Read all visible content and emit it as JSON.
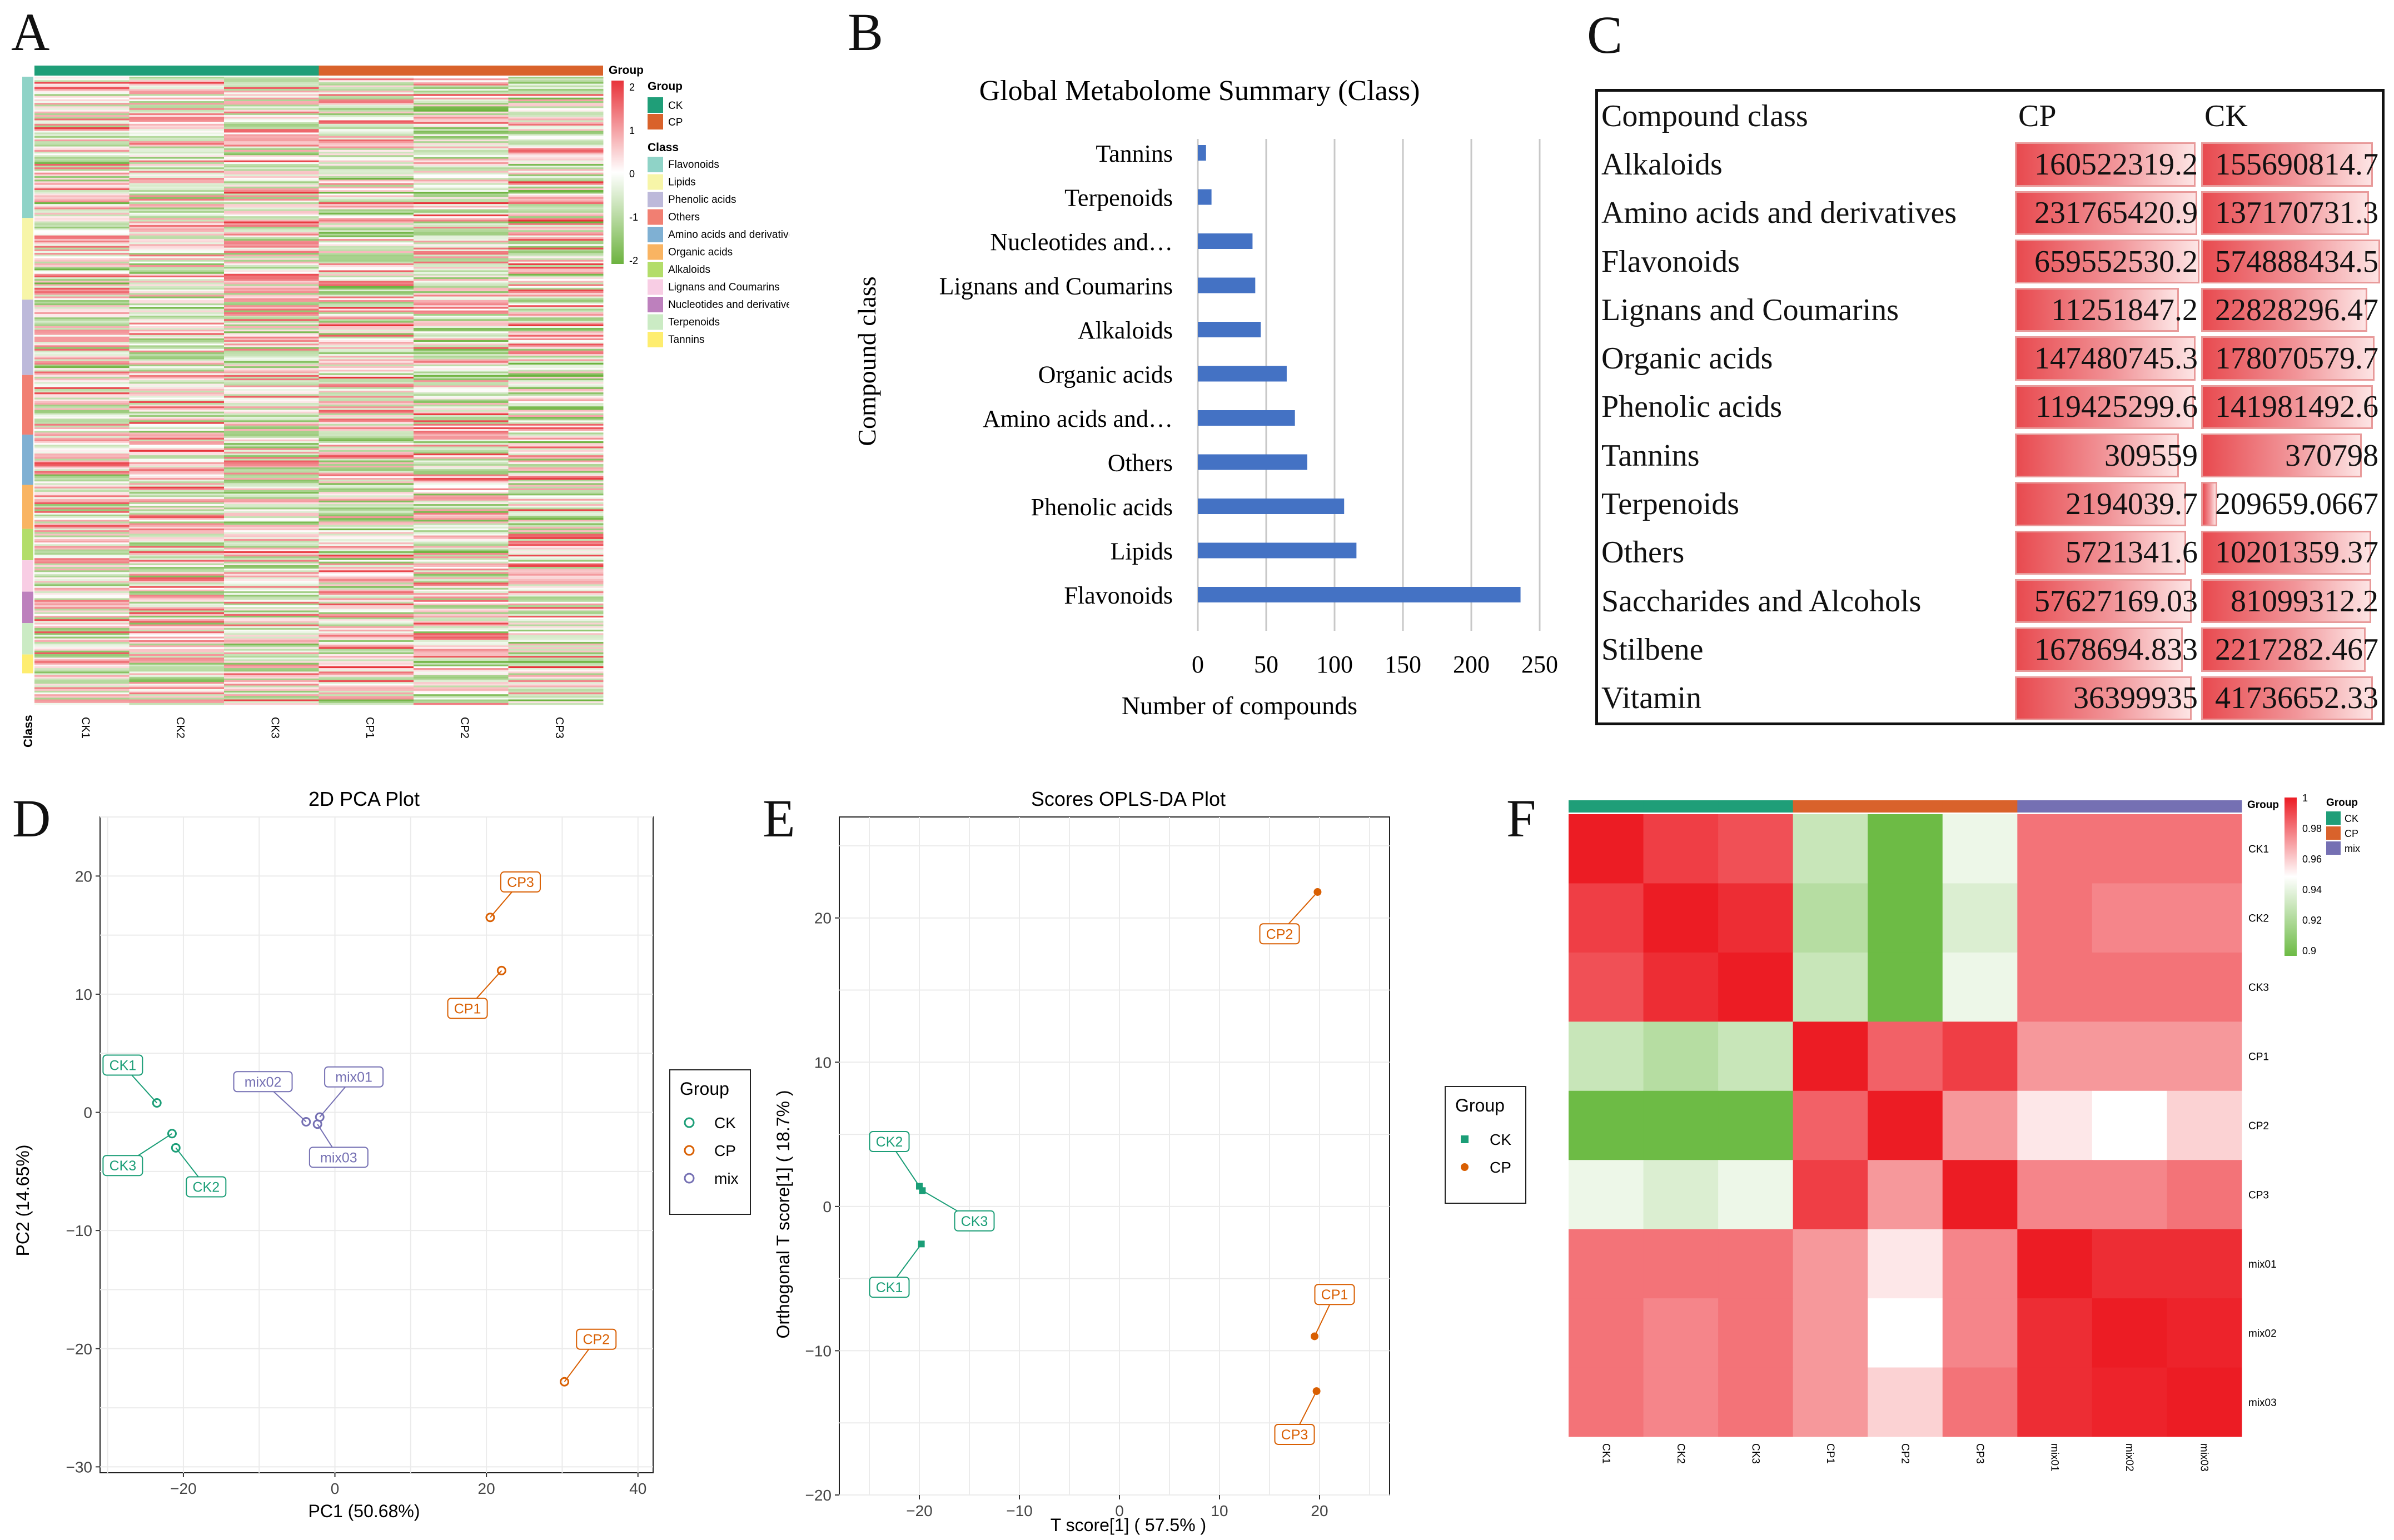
{
  "panels": {
    "A": "A",
    "B": "B",
    "C": "C",
    "D": "D",
    "E": "E",
    "F": "F"
  },
  "panelA": {
    "group_labels": [
      "CK1",
      "CK2",
      "CK3",
      "CP1",
      "CP2",
      "CP3"
    ],
    "class_axis_label": "Class",
    "legend": {
      "title": "Group",
      "groups": [
        {
          "name": "CK",
          "color": "#1f9e78"
        },
        {
          "name": "CP",
          "color": "#d9622b"
        }
      ],
      "class_title": "Class",
      "classes": [
        {
          "name": "Flavonoids",
          "color": "#8fd3c7"
        },
        {
          "name": "Lipids",
          "color": "#f7f5a8"
        },
        {
          "name": "Phenolic acids",
          "color": "#bdb9da"
        },
        {
          "name": "Others",
          "color": "#f17f72"
        },
        {
          "name": "Amino acids and derivatives",
          "color": "#7fb0d3"
        },
        {
          "name": "Organic acids",
          "color": "#f9b462"
        },
        {
          "name": "Alkaloids",
          "color": "#b3dd6a"
        },
        {
          "name": "Lignans and Coumarins",
          "color": "#f8cde4"
        },
        {
          "name": "Nucleotides and derivatives",
          "color": "#bd80bd"
        },
        {
          "name": "Terpenoids",
          "color": "#cbebc4"
        },
        {
          "name": "Tannins",
          "color": "#feed6f"
        }
      ],
      "scale_ticks": [
        "2",
        "1",
        "0",
        "-1",
        "-2"
      ],
      "scale_title": "Group"
    }
  },
  "chart_data": [
    {
      "panel": "B",
      "type": "bar",
      "orientation": "horizontal",
      "title": "Global Metabolome Summary (Class)",
      "xlabel": "Number of compounds",
      "ylabel": "Compound class",
      "categories": [
        "Tannins",
        "Terpenoids",
        "Nucleotides and…",
        "Lignans and Coumarins",
        "Alkaloids",
        "Organic acids",
        "Amino acids and…",
        "Others",
        "Phenolic acids",
        "Lipids",
        "Flavonoids"
      ],
      "values": [
        6,
        10,
        40,
        42,
        46,
        65,
        71,
        80,
        107,
        116,
        236
      ],
      "xlim": [
        0,
        250
      ],
      "xticks": [
        "0",
        "50",
        "100",
        "150",
        "200",
        "250"
      ],
      "color": "#4472c4",
      "grid": true
    },
    {
      "panel": "C",
      "type": "table",
      "headers": [
        "Compound class",
        "CP",
        "CK"
      ],
      "rows": [
        {
          "name": "Alkaloids",
          "cp": "160522319.2",
          "ck": "155690814.7",
          "cp_frac": 0.97,
          "ck_frac": 0.95
        },
        {
          "name": "Amino acids and derivatives",
          "cp": "231765420.9",
          "ck": "137170731.3",
          "cp_frac": 0.98,
          "ck_frac": 0.93
        },
        {
          "name": "Flavonoids",
          "cp": "659552530.2",
          "ck": "574888434.5",
          "cp_frac": 0.99,
          "ck_frac": 0.99
        },
        {
          "name": "Lignans and Coumarins",
          "cp": "11251847.2",
          "ck": "22828296.47",
          "cp_frac": 0.88,
          "ck_frac": 0.92
        },
        {
          "name": "Organic acids",
          "cp": "147480745.3",
          "ck": "178070579.7",
          "cp_frac": 0.97,
          "ck_frac": 0.96
        },
        {
          "name": "Phenolic acids",
          "cp": "119425299.6",
          "ck": "141981492.6",
          "cp_frac": 0.96,
          "ck_frac": 0.95
        },
        {
          "name": "Tannins",
          "cp": "309559",
          "ck": "370798",
          "cp_frac": 0.88,
          "ck_frac": 0.89
        },
        {
          "name": "Terpenoids",
          "cp": "2194039.7",
          "ck": "209659.0667",
          "cp_frac": 0.92,
          "ck_frac": 0.09
        },
        {
          "name": "Others",
          "cp": "5721341.6",
          "ck": "10201359.37",
          "cp_frac": 0.92,
          "ck_frac": 0.94
        },
        {
          "name": "Saccharides and Alcohols",
          "cp": "57627169.03",
          "ck": "81099312.2",
          "cp_frac": 0.95,
          "ck_frac": 0.94
        },
        {
          "name": "Stilbene",
          "cp": "1678694.833",
          "ck": "2217282.467",
          "cp_frac": 0.9,
          "ck_frac": 0.91
        },
        {
          "name": "Vitamin",
          "cp": "36399935",
          "ck": "41736652.33",
          "cp_frac": 0.95,
          "ck_frac": 0.95
        }
      ]
    },
    {
      "panel": "D",
      "type": "scatter",
      "title": "2D PCA Plot",
      "xlabel": "PC1 (50.68%)",
      "ylabel": "PC2 (14.65%)",
      "xlim": [
        -31,
        42
      ],
      "ylim": [
        -30.5,
        25
      ],
      "xticks": [
        -20,
        0,
        20,
        40
      ],
      "yticks": [
        -30,
        -20,
        -10,
        0,
        10,
        20
      ],
      "legend": {
        "title": "Group",
        "entries": [
          {
            "name": "CK",
            "color": "#1b9e77"
          },
          {
            "name": "CP",
            "color": "#d95f02"
          },
          {
            "name": "mix",
            "color": "#7570b3"
          }
        ]
      },
      "points": [
        {
          "label": "CK1",
          "group": "CK",
          "x": -23.5,
          "y": 0.8,
          "lx": -28,
          "ly": 4
        },
        {
          "label": "CK2",
          "group": "CK",
          "x": -21,
          "y": -3,
          "lx": -17,
          "ly": -6.3
        },
        {
          "label": "CK3",
          "group": "CK",
          "x": -21.5,
          "y": -1.8,
          "lx": -28,
          "ly": -4.5
        },
        {
          "label": "CP1",
          "group": "CP",
          "x": 22,
          "y": 12,
          "lx": 17.5,
          "ly": 8.8
        },
        {
          "label": "CP2",
          "group": "CP",
          "x": 30.3,
          "y": -22.8,
          "lx": 34.5,
          "ly": -19.2
        },
        {
          "label": "CP3",
          "group": "CP",
          "x": 20.5,
          "y": 16.5,
          "lx": 24.5,
          "ly": 19.5
        },
        {
          "label": "mix01",
          "group": "mix",
          "x": -2,
          "y": -0.4,
          "lx": 2.5,
          "ly": 3
        },
        {
          "label": "mix02",
          "group": "mix",
          "x": -3.8,
          "y": -0.8,
          "lx": -9.5,
          "ly": 2.6
        },
        {
          "label": "mix03",
          "group": "mix",
          "x": -2.3,
          "y": -1,
          "lx": 0.5,
          "ly": -3.8
        }
      ]
    },
    {
      "panel": "E",
      "type": "scatter",
      "title": "Scores OPLS-DA Plot",
      "xlabel": "T score[1] ( 57.5% )",
      "ylabel": "Orthogonal T score[1] ( 18.7% )",
      "xlim": [
        -28,
        27
      ],
      "ylim": [
        -20,
        27
      ],
      "xticks": [
        -20,
        -10,
        0,
        10,
        20
      ],
      "yticks": [
        -20,
        -10,
        0,
        10,
        20
      ],
      "legend": {
        "title": "Group",
        "entries": [
          {
            "name": "CK",
            "color": "#1b9e77",
            "shape": "square"
          },
          {
            "name": "CP",
            "color": "#d95f02",
            "shape": "circle"
          }
        ]
      },
      "points": [
        {
          "label": "CK1",
          "group": "CK",
          "x": -19.8,
          "y": -2.6,
          "lx": -23,
          "ly": -5.6
        },
        {
          "label": "CK2",
          "group": "CK",
          "x": -20,
          "y": 1.4,
          "lx": -23,
          "ly": 4.5
        },
        {
          "label": "CK3",
          "group": "CK",
          "x": -19.7,
          "y": 1.1,
          "lx": -14.5,
          "ly": -1
        },
        {
          "label": "CP1",
          "group": "CP",
          "x": 19.5,
          "y": -9,
          "lx": 21.5,
          "ly": -6.1
        },
        {
          "label": "CP2",
          "group": "CP",
          "x": 19.8,
          "y": 21.8,
          "lx": 16,
          "ly": 18.9
        },
        {
          "label": "CP3",
          "group": "CP",
          "x": 19.7,
          "y": -12.8,
          "lx": 17.5,
          "ly": -15.8
        }
      ]
    },
    {
      "panel": "F",
      "type": "heatmap",
      "row_labels": [
        "CK1",
        "CK2",
        "CK3",
        "CP1",
        "CP2",
        "CP3",
        "mix01",
        "mix02",
        "mix03"
      ],
      "col_labels": [
        "CK1",
        "CK2",
        "CK3",
        "CP1",
        "CP2",
        "CP3",
        "mix01",
        "mix02",
        "mix03"
      ],
      "groups": [
        "CK",
        "CK",
        "CK",
        "CP",
        "CP",
        "CP",
        "mix",
        "mix",
        "mix"
      ],
      "values": [
        [
          1.0,
          0.99,
          0.985,
          0.925,
          0.9,
          0.935,
          0.975,
          0.975,
          0.975
        ],
        [
          0.99,
          1.0,
          0.995,
          0.92,
          0.9,
          0.93,
          0.975,
          0.97,
          0.97
        ],
        [
          0.985,
          0.995,
          1.0,
          0.925,
          0.9,
          0.935,
          0.975,
          0.975,
          0.975
        ],
        [
          0.925,
          0.92,
          0.925,
          1.0,
          0.98,
          0.99,
          0.965,
          0.965,
          0.965
        ],
        [
          0.9,
          0.9,
          0.9,
          0.98,
          1.0,
          0.965,
          0.945,
          0.94,
          0.95
        ],
        [
          0.935,
          0.93,
          0.935,
          0.99,
          0.965,
          1.0,
          0.97,
          0.97,
          0.975
        ],
        [
          0.975,
          0.975,
          0.975,
          0.965,
          0.945,
          0.97,
          1.0,
          0.995,
          0.995
        ],
        [
          0.975,
          0.97,
          0.975,
          0.965,
          0.94,
          0.97,
          0.995,
          1.0,
          0.998
        ],
        [
          0.975,
          0.97,
          0.975,
          0.965,
          0.95,
          0.975,
          0.995,
          0.998,
          1.0
        ]
      ],
      "scale_ticks": [
        "1",
        "0.98",
        "0.96",
        "0.94",
        "0.92",
        "0.9"
      ],
      "legend": {
        "title": "Group",
        "entries": [
          {
            "name": "CK",
            "color": "#1f9e78"
          },
          {
            "name": "CP",
            "color": "#d9622b"
          },
          {
            "name": "mix",
            "color": "#7570b3"
          }
        ]
      },
      "group_bar_label": "Group"
    }
  ]
}
